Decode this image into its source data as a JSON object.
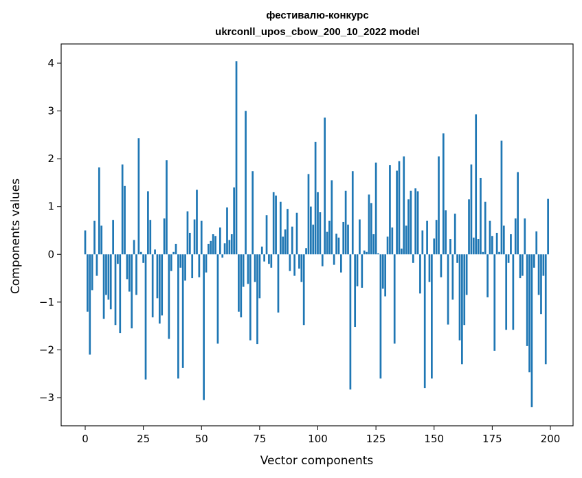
{
  "chart_data": {
    "type": "bar",
    "title_line1": "фестивалю-конкурс",
    "title_line2": "ukrconll_upos_cbow_200_10_2022 model",
    "xlabel": "Vector components",
    "ylabel": "Components values",
    "xlim": [
      -5,
      209
    ],
    "ylim": [
      -3.55,
      4.4
    ],
    "xticks": [
      0,
      25,
      50,
      75,
      100,
      125,
      150,
      175,
      200
    ],
    "yticks": [
      -3,
      -2,
      -1,
      0,
      1,
      2,
      3,
      4
    ],
    "ytick_labels": [
      "−3",
      "−2",
      "−1",
      "0",
      "1",
      "2",
      "3",
      "4"
    ],
    "bar_color": "#1f77b4",
    "grid": false,
    "values": [
      0.5,
      -1.2,
      -2.1,
      -0.75,
      0.7,
      -0.45,
      1.82,
      0.6,
      -1.35,
      -0.85,
      -0.95,
      -1.15,
      0.72,
      -1.48,
      -0.2,
      -1.65,
      1.88,
      1.43,
      -0.52,
      -0.78,
      -1.55,
      0.3,
      -0.85,
      2.43,
      0.05,
      -0.18,
      -2.62,
      1.32,
      0.72,
      -1.32,
      0.1,
      -0.92,
      -1.45,
      -1.28,
      0.75,
      1.97,
      -1.77,
      -0.35,
      0.05,
      0.22,
      -2.6,
      -0.28,
      -2.38,
      -0.55,
      0.9,
      0.45,
      -0.5,
      0.73,
      1.35,
      -0.48,
      0.7,
      -3.05,
      -0.38,
      0.22,
      0.28,
      0.42,
      0.38,
      -1.87,
      0.56,
      -0.07,
      0.23,
      0.98,
      0.3,
      0.42,
      1.4,
      4.04,
      -1.2,
      -1.32,
      -0.68,
      3.0,
      -0.62,
      -1.8,
      1.74,
      -0.58,
      -1.88,
      -0.92,
      0.16,
      -0.15,
      0.82,
      -0.2,
      -0.28,
      1.3,
      1.23,
      -1.22,
      1.1,
      0.37,
      0.52,
      0.95,
      -0.35,
      0.58,
      -0.45,
      0.87,
      -0.3,
      -0.58,
      -1.48,
      0.13,
      1.68,
      1.0,
      0.62,
      2.35,
      1.3,
      0.88,
      -0.25,
      2.86,
      0.47,
      0.7,
      1.55,
      -0.22,
      0.43,
      0.35,
      -0.38,
      0.68,
      1.33,
      0.62,
      -2.83,
      1.74,
      -1.52,
      -0.67,
      0.73,
      -0.7,
      0.08,
      0.05,
      1.25,
      1.07,
      0.42,
      1.92,
      0.02,
      -2.6,
      -0.72,
      -0.88,
      0.37,
      1.87,
      0.56,
      -1.87,
      1.75,
      1.95,
      0.12,
      2.05,
      0.6,
      1.15,
      1.33,
      -0.18,
      1.38,
      1.32,
      -0.82,
      0.5,
      -2.8,
      0.7,
      -0.58,
      -2.6,
      0.33,
      0.72,
      2.05,
      -0.48,
      2.53,
      0.92,
      -1.47,
      0.32,
      -0.95,
      0.85,
      -0.18,
      -1.8,
      -2.3,
      -1.48,
      -0.85,
      1.15,
      1.88,
      0.35,
      2.93,
      0.32,
      1.6,
      0.05,
      1.1,
      -0.9,
      0.7,
      0.38,
      -2.02,
      0.45,
      0.05,
      2.38,
      0.6,
      -1.58,
      -0.18,
      0.42,
      -1.58,
      0.75,
      1.72,
      -0.5,
      -0.45,
      0.75,
      -1.92,
      -2.47,
      -3.2,
      -0.28,
      0.48,
      -0.85,
      -1.25,
      -0.45,
      -2.3,
      1.16
    ]
  }
}
